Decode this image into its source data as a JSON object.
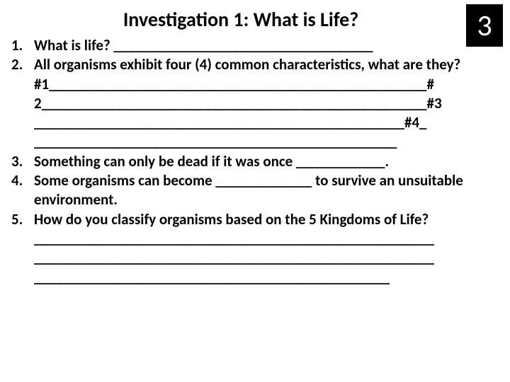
{
  "title": "Investigation 1: What is Life?",
  "page_number": "3",
  "questions": {
    "q1": {
      "text": "What is life? ___________________________________"
    },
    "q2": {
      "lead": "All organisms exhibit four (4) common characteristics, what are they?",
      "line1": "#1___________________________________________________#",
      "line2": "2____________________________________________________#3",
      "line3": "__________________________________________________#4_",
      "line4": "_________________________________________________"
    },
    "q3": {
      "text": "Something can only be dead if it was once ____________."
    },
    "q4": {
      "text": "Some organisms can become _____________ to survive an unsuitable environment."
    },
    "q5": {
      "lead": "How do you classify organisms based on the 5 Kingdoms of Life?",
      "line1": "______________________________________________________",
      "line2": "______________________________________________________",
      "line3": "________________________________________________"
    }
  }
}
